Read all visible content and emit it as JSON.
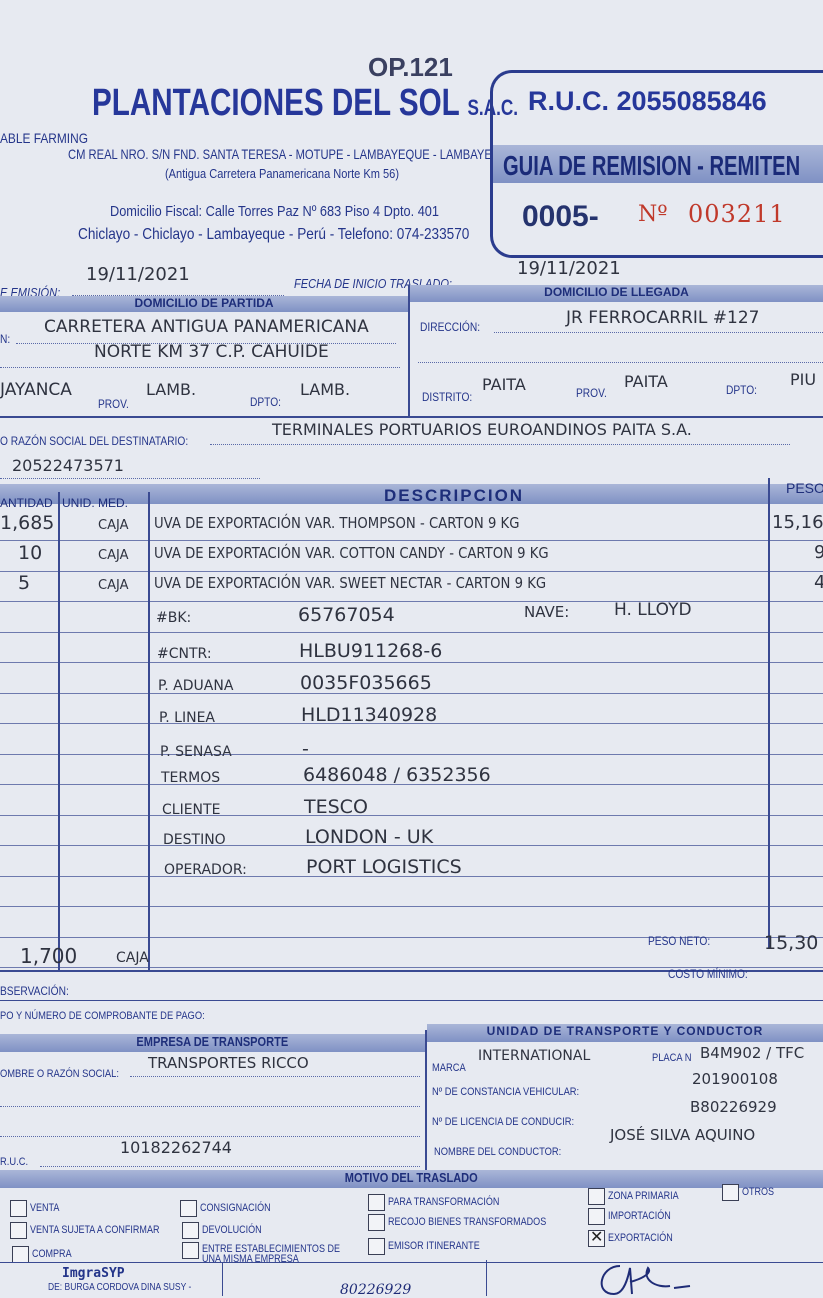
{
  "header": {
    "op_code": "OP.121",
    "company_name": "PLANTACIONES DEL SOL",
    "company_suffix": "S.A.C.",
    "tagline_fragment": "ABLE FARMING",
    "address_line1": "CM REAL NRO. S/N FND. SANTA TERESA - MOTUPE - LAMBAYEQUE - LAMBAYEQUE",
    "address_line2": "(Antigua Carretera Panamericana Norte Km 56)",
    "fiscal_line1": "Domicilio Fiscal: Calle Torres Paz Nº 683 Piso 4 Dpto. 401",
    "fiscal_line2": "Chiclayo - Chiclayo - Lambayeque - Perú - Telefono: 074-233570"
  },
  "ruc_box": {
    "ruc": "R.U.C. 2055085846",
    "doc_type": "GUIA DE REMISION - REMITEN",
    "series": "0005-",
    "number_label": "Nº",
    "number": "003211"
  },
  "dates": {
    "emision_label": "E EMISIÓN:",
    "emision_value": "19/11/2021",
    "inicio_label": "FECHA DE INICIO TRASLADO:",
    "inicio_value": "19/11/2021"
  },
  "partida": {
    "title": "DOMICILIO DE PARTIDA",
    "dir_label": "N:",
    "dir_line1": "CARRETERA ANTIGUA PANAMERICANA",
    "dir_line2": "NORTE KM 37 C.P. CAHUIDE",
    "distrito": "JAYANCA",
    "prov_label": "PROV.",
    "prov": "LAMB.",
    "dpto_label": "DPTO:",
    "dpto": "LAMB."
  },
  "llegada": {
    "title": "DOMICILIO DE LLEGADA",
    "dir_label": "DIRECCIÓN:",
    "dir_value": "JR FERROCARRIL #127",
    "distrito_label": "DISTRITO:",
    "distrito": "PAITA",
    "prov_label": "PROV.",
    "prov": "PAITA",
    "dpto_label": "DPTO:",
    "dpto": "PIU"
  },
  "destinatario": {
    "label": "O RAZÓN SOCIAL DEL DESTINATARIO:",
    "name": "TERMINALES PORTUARIOS EUROANDINOS PAITA S.A.",
    "ruc": "20522473571"
  },
  "table": {
    "headers": [
      "ANTIDAD",
      "UNID. MED.",
      "DESCRIPCION",
      "PESO"
    ],
    "rows": [
      {
        "qty": "1,685",
        "unit": "CAJA",
        "desc": "UVA DE EXPORTACIÓN VAR. THOMPSON - CARTON 9 KG",
        "peso": "15,16"
      },
      {
        "qty": "10",
        "unit": "CAJA",
        "desc": "UVA DE EXPORTACIÓN VAR. COTTON CANDY - CARTON 9 KG",
        "peso": "9"
      },
      {
        "qty": "5",
        "unit": "CAJA",
        "desc": "UVA DE EXPORTACIÓN VAR. SWEET NECTAR - CARTON 9 KG",
        "peso": "4"
      }
    ],
    "details": [
      {
        "label": "#BK:",
        "value": "65767054"
      },
      {
        "label": "#CNTR:",
        "value": "HLBU911268-6"
      },
      {
        "label": "P. ADUANA",
        "value": "0035F035665"
      },
      {
        "label": "P. LINEA",
        "value": "HLD11340928"
      },
      {
        "label": "P. SENASA",
        "value": "-"
      },
      {
        "label": "TERMOS",
        "value": "6486048 / 6352356"
      },
      {
        "label": "CLIENTE",
        "value": "TESCO"
      },
      {
        "label": "DESTINO",
        "value": "LONDON - UK"
      },
      {
        "label": "OPERADOR:",
        "value": "PORT LOGISTICS"
      }
    ],
    "nave_label": "NAVE:",
    "nave_value": "H. LLOYD",
    "total_qty": "1,700",
    "total_unit": "CAJA",
    "peso_neto_label": "PESO NETO:",
    "peso_neto_value": "15,30",
    "costo_label": "COSTO MÍNIMO:",
    "observacion_label": "BSERVACIÓN:",
    "comprobante_label": "PO Y NÚMERO DE COMPROBANTE DE PAGO:"
  },
  "transporte": {
    "title": "EMPRESA DE TRANSPORTE",
    "razon_label": "OMBRE O RAZÓN SOCIAL:",
    "razon_value": "TRANSPORTES RICCO",
    "ruc_label": "R.U.C.",
    "ruc_value": "10182262744"
  },
  "unidad": {
    "title": "UNIDAD DE TRANSPORTE Y CONDUCTOR",
    "marca_label": "MARCA",
    "marca_value": "INTERNATIONAL",
    "placa_label": "PLACA N",
    "placa_value": "B4M902 / TFC",
    "constancia_label": "Nº DE CONSTANCIA VEHICULAR:",
    "constancia_value": "201900108",
    "licencia_label": "Nº DE LICENCIA DE CONDUCIR:",
    "licencia_value": "B80226929",
    "conductor_label": "NOMBRE DEL CONDUCTOR:",
    "conductor_value": "JOSÉ SILVA AQUINO"
  },
  "motivo": {
    "title": "MOTIVO DEL TRASLADO",
    "options": [
      {
        "label": "VENTA",
        "checked": false
      },
      {
        "label": "VENTA SUJETA A CONFIRMAR",
        "checked": false
      },
      {
        "label": "COMPRA",
        "checked": false
      },
      {
        "label": "CONSIGNACIÓN",
        "checked": false
      },
      {
        "label": "DEVOLUCIÓN",
        "checked": false
      },
      {
        "label": "ENTRE ESTABLECIMIENTOS DE UNA MISMA EMPRESA",
        "checked": false
      },
      {
        "label": "PARA TRANSFORMACIÓN",
        "checked": false
      },
      {
        "label": "RECOJO BIENES TRANSFORMADOS",
        "checked": false
      },
      {
        "label": "EMISOR ITINERANTE",
        "checked": false
      },
      {
        "label": "ZONA PRIMARIA",
        "checked": false
      },
      {
        "label": "IMPORTACIÓN",
        "checked": false
      },
      {
        "label": "EXPORTACIÓN",
        "checked": true
      },
      {
        "label": "OTROS",
        "checked": false
      }
    ]
  },
  "footer": {
    "printer": "ImgraSYP",
    "printer_line": "DE: BURGA CORDOVA DINA SUSY -",
    "handwritten_number": "80226929"
  },
  "colors": {
    "ink_blue": "#24358a",
    "band": "#8e9fcc",
    "serial_red": "#c0392b",
    "paper": "#e7eaf1"
  }
}
